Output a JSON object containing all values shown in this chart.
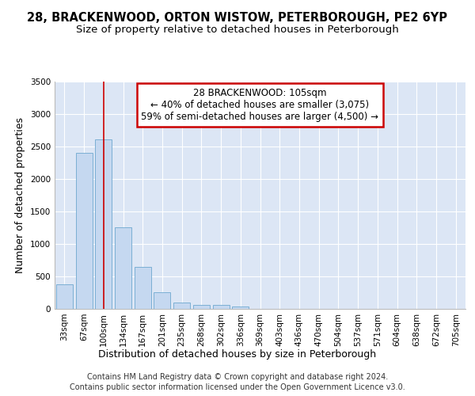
{
  "title": "28, BRACKENWOOD, ORTON WISTOW, PETERBOROUGH, PE2 6YP",
  "subtitle": "Size of property relative to detached houses in Peterborough",
  "xlabel": "Distribution of detached houses by size in Peterborough",
  "ylabel": "Number of detached properties",
  "categories": [
    "33sqm",
    "67sqm",
    "100sqm",
    "134sqm",
    "167sqm",
    "201sqm",
    "235sqm",
    "268sqm",
    "302sqm",
    "336sqm",
    "369sqm",
    "403sqm",
    "436sqm",
    "470sqm",
    "504sqm",
    "537sqm",
    "571sqm",
    "604sqm",
    "638sqm",
    "672sqm",
    "705sqm"
  ],
  "values": [
    380,
    2400,
    2600,
    1250,
    640,
    260,
    100,
    62,
    60,
    42,
    0,
    0,
    0,
    0,
    0,
    0,
    0,
    0,
    0,
    0,
    0
  ],
  "bar_color": "#c5d8f0",
  "bar_edge_color": "#7bafd4",
  "vline_x_index": 2,
  "vline_color": "#cc0000",
  "annotation_text": "28 BRACKENWOOD: 105sqm\n← 40% of detached houses are smaller (3,075)\n59% of semi-detached houses are larger (4,500) →",
  "annotation_box_color": "#ffffff",
  "annotation_box_edge_color": "#cc0000",
  "ylim": [
    0,
    3500
  ],
  "yticks": [
    0,
    500,
    1000,
    1500,
    2000,
    2500,
    3000,
    3500
  ],
  "bg_color": "#dce6f5",
  "grid_color": "#ffffff",
  "fig_bg_color": "#ffffff",
  "footer_line1": "Contains HM Land Registry data © Crown copyright and database right 2024.",
  "footer_line2": "Contains public sector information licensed under the Open Government Licence v3.0.",
  "title_fontsize": 10.5,
  "subtitle_fontsize": 9.5,
  "axis_label_fontsize": 9,
  "tick_fontsize": 7.5,
  "annotation_fontsize": 8.5,
  "footer_fontsize": 7
}
